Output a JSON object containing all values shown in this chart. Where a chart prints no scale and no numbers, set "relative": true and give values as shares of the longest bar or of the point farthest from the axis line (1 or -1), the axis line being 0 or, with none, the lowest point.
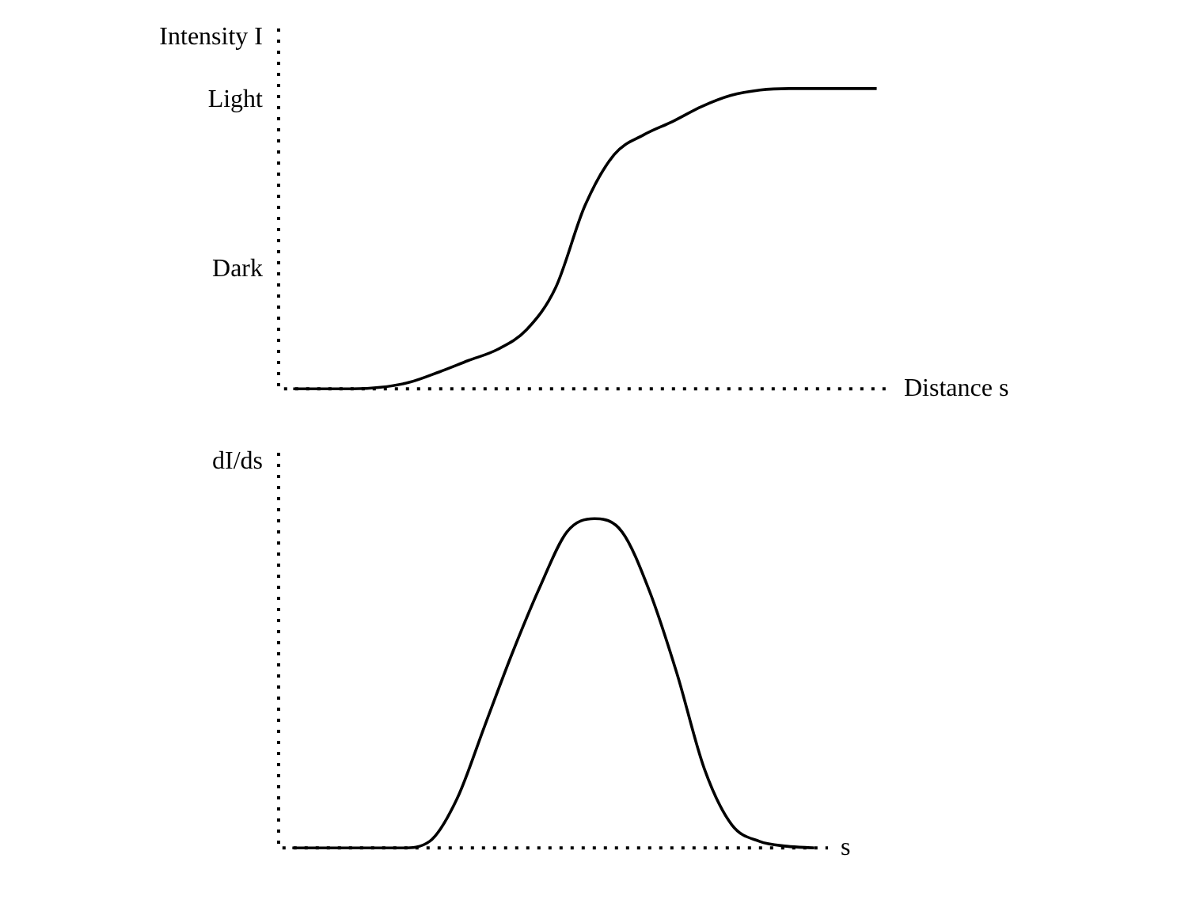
{
  "chart_data": [
    {
      "type": "line",
      "relative": true,
      "ylabel": "Intensity I",
      "xlabel": "Distance s",
      "annotations": [
        "Light",
        "Dark"
      ],
      "categories": [
        null,
        null,
        null,
        null,
        null,
        null,
        null,
        null,
        null,
        null,
        null,
        null,
        null,
        null,
        null,
        null,
        null,
        null,
        null,
        null,
        null
      ],
      "series": [
        {
          "color": "#000000",
          "values": [
            0,
            0,
            0,
            0.005,
            0.022,
            0.056,
            0.094,
            0.131,
            0.197,
            0.338,
            0.61,
            0.78,
            0.845,
            0.89,
            0.94,
            0.977,
            0.995,
            1,
            1,
            1,
            1
          ]
        }
      ],
      "legend": false,
      "grid": false,
      "marker": "none"
    },
    {
      "type": "line",
      "relative": true,
      "ylabel": "dI/ds",
      "xlabel": "s",
      "categories": [
        null,
        null,
        null,
        null,
        null,
        null,
        null,
        null,
        null,
        null,
        null,
        null,
        null,
        null,
        null,
        null,
        null,
        null,
        null,
        null
      ],
      "series": [
        {
          "color": "#000000",
          "values": [
            0,
            0,
            0,
            0,
            0,
            0.02,
            0.15,
            0.37,
            0.59,
            0.79,
            0.96,
            1,
            0.96,
            0.78,
            0.53,
            0.24,
            0.07,
            0.02,
            0.005,
            0
          ]
        }
      ],
      "legend": false,
      "grid": false,
      "marker": "none"
    }
  ]
}
